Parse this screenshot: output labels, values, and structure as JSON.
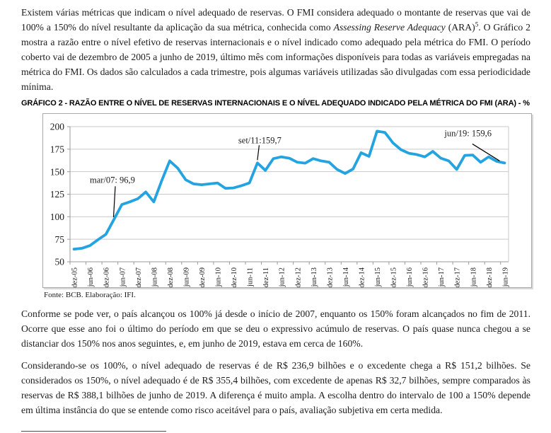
{
  "page": {
    "paragraph1": {
      "part1": "Existem várias métricas que indicam o nível adequado de reservas. O FMI considera adequado o montante de reservas que vai de 100% a 150% do nível resultante da aplicação da sua métrica, conhecida como ",
      "italic": "Assessing Reserve Adequacy",
      "part2": " (ARA)",
      "footnote_ref": "5",
      "part3": ". O Gráfico 2 mostra a razão entre o nível efetivo de reservas internacionais e o nível indicado como adequado pela métrica do FMI. O período coberto vai de dezembro de 2005 a junho de 2019, último mês com informações disponíveis para todas as variáveis empregadas na métrica do FMI. Os dados são calculados a cada trimestre, pois algumas variáveis utilizadas são divulgadas com essa periodicidade mínima."
    },
    "chart_title": "GRÁFICO 2 - RAZÃO ENTRE O NÍVEL DE RESERVAS INTERNACIONAIS E O NÍVEL ADEQUADO INDICADO PELA MÉTRICA DO FMI (ARA) - %",
    "chart_source": "Fonte: BCB. Elaboração: IFI.",
    "paragraph2": "Conforme se pode ver, o país alcançou os 100% já desde o início de 2007, enquanto os 150% foram alcançados no fim de 2011. Ocorre que esse ano foi o último do período em que se deu o expressivo acúmulo de reservas. O país quase nunca chegou a se distanciar dos 150% nos anos seguintes, e, em junho de 2019, estava em cerca de 160%.",
    "paragraph3": "Considerando-se os 100%, o nível adequado de reservas é de R$ 236,9 bilhões e o excedente chega a R$ 151,2 bilhões. Se considerados os 150%, o nível adequado é de R$ 355,4 bilhões, com excedente de apenas R$ 32,7 bilhões, sempre comparados às reservas de R$ 388,1 bilhões de junho de 2019. A diferença é muito ampla. A escolha dentro do intervalo de 100 a 150% depende em última instância do que se entende como risco aceitável para o país, avaliação subjetiva em certa medida."
  },
  "chart_data": {
    "type": "line",
    "title": "GRÁFICO 2 - RAZÃO ENTRE O NÍVEL DE RESERVAS INTERNACIONAIS E O NÍVEL ADEQUADO INDICADO PELA MÉTRICA DO FMI (ARA) - %",
    "source": "Fonte: BCB. Elaboração: IFI.",
    "xlabel": "",
    "ylabel": "",
    "ylim": [
      50,
      200
    ],
    "yticks": [
      50,
      75,
      100,
      125,
      150,
      175,
      200
    ],
    "x_tick_label_every": 2,
    "grid": true,
    "legend": false,
    "line_color": "#23A3DF",
    "x": [
      "dez-05",
      "mar-06",
      "jun-06",
      "set-06",
      "dez-06",
      "mar-07",
      "jun-07",
      "set-07",
      "dez-07",
      "mar-08",
      "jun-08",
      "set-08",
      "dez-08",
      "mar-09",
      "jun-09",
      "set-09",
      "dez-09",
      "mar-10",
      "jun-10",
      "set-10",
      "dez-10",
      "mar-11",
      "jun-11",
      "set-11",
      "dez-11",
      "mar-12",
      "jun-12",
      "set-12",
      "dez-12",
      "mar-13",
      "jun-13",
      "set-13",
      "dez-13",
      "mar-14",
      "jun-14",
      "set-14",
      "dez-14",
      "mar-15",
      "jun-15",
      "set-15",
      "dez-15",
      "mar-16",
      "jun-16",
      "set-16",
      "dez-16",
      "mar-17",
      "jun-17",
      "set-17",
      "dez-17",
      "mar-18",
      "jun-18",
      "set-18",
      "dez-18",
      "mar-19",
      "jun-19"
    ],
    "values": [
      64,
      65,
      68,
      74.5,
      80.5,
      96.9,
      113.5,
      116.5,
      120,
      127.5,
      116.5,
      140,
      162,
      154,
      141,
      136.5,
      135.5,
      136.5,
      137.5,
      131.5,
      132,
      134.5,
      137.5,
      159.7,
      151.5,
      164.5,
      166.5,
      165,
      160.5,
      159.5,
      164.5,
      162,
      160.5,
      152.5,
      148,
      153,
      171,
      167,
      195,
      193.5,
      182,
      174.5,
      170.5,
      169,
      166.5,
      172.5,
      165,
      162,
      152.5,
      168,
      168.5,
      160.5,
      166.5,
      161.5,
      159.6
    ],
    "annotations": [
      {
        "label": "mar/07: 96,9",
        "x": "mar-07",
        "value": 96.9
      },
      {
        "label": "set/11:159,7",
        "x": "set-11",
        "value": 159.7
      },
      {
        "label": "jun/19: 159,6",
        "x": "jun-19",
        "value": 159.6
      }
    ]
  }
}
